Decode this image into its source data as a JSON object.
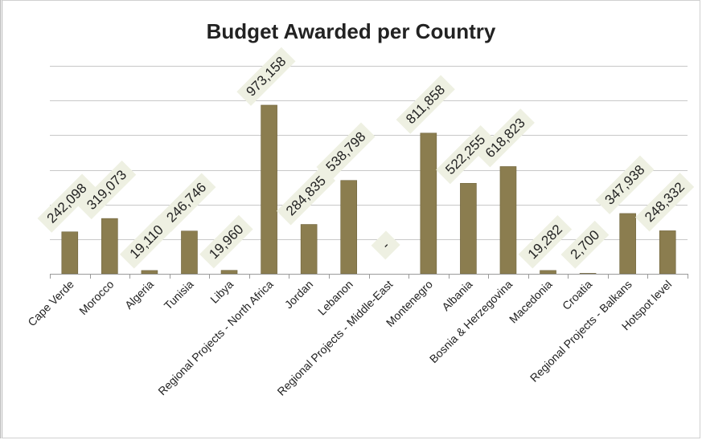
{
  "chart_data": {
    "type": "bar",
    "title": "Budget Awarded per Country",
    "xlabel": "",
    "ylabel": "",
    "ylim": [
      0,
      1200000
    ],
    "y_gridline_step": 200000,
    "grid": true,
    "legend": "none",
    "bar_color": "#8b7d4f",
    "label_background_color": "#eef0e2",
    "categories": [
      "Cape Verde",
      "Morocco",
      "Algeria",
      "Tunisia",
      "Libya",
      "Regional Projects - North Africa",
      "Jordan",
      "Lebanon",
      "Regional Projects - Middle-East",
      "Montenegro",
      "Albania",
      "Bosnia & Herzegovina",
      "Macedonia",
      "Croatia",
      "Regional Projects - Balkans",
      "Hotspot level"
    ],
    "values": [
      242098,
      319073,
      19110,
      246746,
      19960,
      973158,
      284835,
      538798,
      0,
      811858,
      522255,
      618823,
      19282,
      2700,
      347938,
      248332
    ],
    "data_labels": [
      "242,098",
      "319,073",
      "19,110",
      "246,746",
      "19,960",
      "973,158",
      "284,835",
      "538,798",
      "-",
      "811,858",
      "522,255",
      "618,823",
      "19,282",
      "2,700",
      "347,938",
      "248,332"
    ]
  }
}
